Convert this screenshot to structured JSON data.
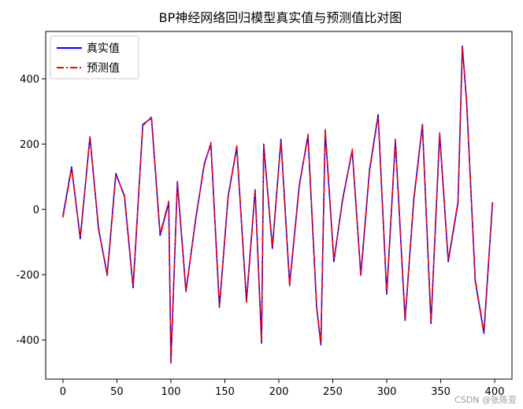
{
  "chart_data": {
    "type": "line",
    "title": "BP神经网络回归模型真实值与预测值比对图",
    "xlabel": "",
    "ylabel": "",
    "xlim": [
      -16,
      416
    ],
    "ylim": [
      -520,
      545
    ],
    "xticks": [
      0,
      50,
      100,
      150,
      200,
      250,
      300,
      350,
      400
    ],
    "yticks": [
      -400,
      -200,
      0,
      200,
      400
    ],
    "grid": false,
    "legend_position": "top-left",
    "series": [
      {
        "name": "真实值",
        "color": "#0000ff",
        "style": "solid"
      },
      {
        "name": "预测值",
        "color": "#ff0000",
        "style": "dashdot"
      }
    ],
    "x": [
      0,
      8,
      16,
      25,
      33,
      41,
      49,
      57,
      65,
      74,
      82,
      90,
      98,
      100,
      106,
      114,
      123,
      131,
      137,
      145,
      153,
      161,
      170,
      178,
      184,
      186,
      194,
      202,
      210,
      219,
      227,
      235,
      239,
      243,
      251,
      259,
      268,
      276,
      284,
      292,
      300,
      308,
      317,
      325,
      333,
      341,
      349,
      357,
      366,
      370,
      374,
      382,
      390,
      398
    ],
    "y_true": [
      -20,
      130,
      -90,
      222,
      -60,
      -200,
      110,
      40,
      -240,
      260,
      280,
      -80,
      20,
      -470,
      85,
      -250,
      -30,
      140,
      200,
      -300,
      40,
      190,
      -280,
      60,
      -410,
      200,
      -120,
      215,
      -230,
      75,
      225,
      -300,
      -415,
      240,
      -160,
      30,
      180,
      -200,
      120,
      290,
      -260,
      210,
      -340,
      30,
      260,
      -350,
      230,
      -160,
      20,
      500,
      330,
      -220,
      -380,
      20
    ],
    "y_pred": [
      -25,
      125,
      -85,
      220,
      -55,
      -205,
      105,
      45,
      -235,
      255,
      285,
      -75,
      25,
      -465,
      80,
      -255,
      -25,
      135,
      205,
      -295,
      35,
      195,
      -285,
      55,
      -405,
      195,
      -115,
      210,
      -235,
      70,
      230,
      -295,
      -410,
      245,
      -155,
      25,
      185,
      -205,
      115,
      285,
      -255,
      215,
      -335,
      25,
      255,
      -345,
      235,
      -155,
      25,
      495,
      335,
      -215,
      -375,
      25
    ]
  },
  "watermark": "CSDN @张陈亚"
}
